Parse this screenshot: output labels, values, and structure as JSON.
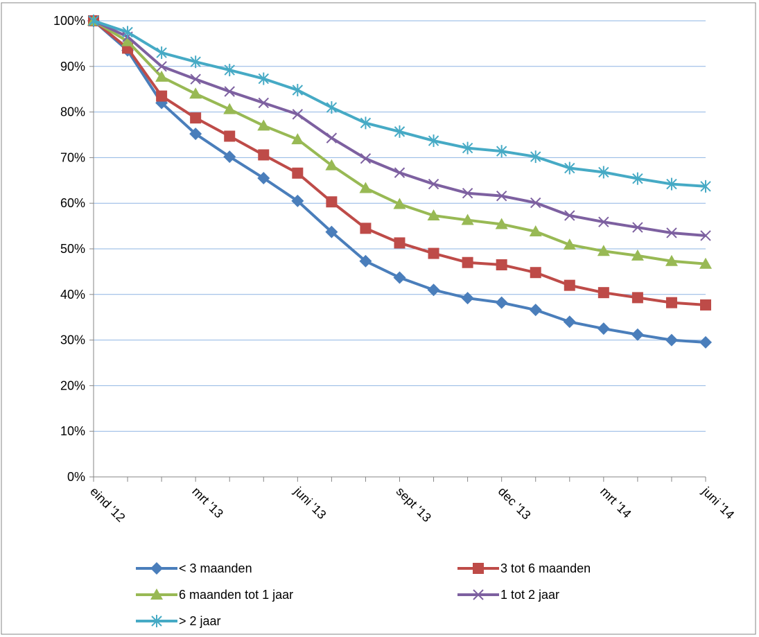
{
  "caption": "",
  "chart_data": {
    "type": "line",
    "title": "",
    "xlabel": "",
    "ylabel": "",
    "ylim": [
      0,
      1
    ],
    "y_tick_labels": [
      "0%",
      "10%",
      "20%",
      "30%",
      "40%",
      "50%",
      "60%",
      "70%",
      "80%",
      "90%",
      "100%"
    ],
    "x_tick_labels": [
      "eind '12",
      "mrt '13",
      "juni '13",
      "sept '13",
      "dec '13",
      "mrt '14",
      "juni '14"
    ],
    "x_labeled_indices": [
      0,
      3,
      6,
      9,
      12,
      15,
      18
    ],
    "x_count": 19,
    "grid": true,
    "legend_position": "bottom",
    "series": [
      {
        "name": "< 3 maanden",
        "color": "#4A7EBB",
        "marker": "diamond",
        "values": [
          1.0,
          0.935,
          0.82,
          0.752,
          0.702,
          0.655,
          0.605,
          0.537,
          0.473,
          0.437,
          0.41,
          0.392,
          0.382,
          0.366,
          0.34,
          0.325,
          0.312,
          0.3,
          0.295
        ]
      },
      {
        "name": "3 tot 6 maanden",
        "color": "#BE4B48",
        "marker": "square",
        "values": [
          1.0,
          0.94,
          0.835,
          0.787,
          0.747,
          0.706,
          0.666,
          0.603,
          0.545,
          0.513,
          0.49,
          0.47,
          0.465,
          0.448,
          0.42,
          0.404,
          0.393,
          0.382,
          0.377
        ]
      },
      {
        "name": "6 maanden tot 1 jaar",
        "color": "#98B954",
        "marker": "triangle",
        "values": [
          1.0,
          0.955,
          0.877,
          0.84,
          0.806,
          0.77,
          0.74,
          0.683,
          0.633,
          0.598,
          0.573,
          0.563,
          0.554,
          0.538,
          0.509,
          0.495,
          0.485,
          0.473,
          0.467
        ]
      },
      {
        "name": "1 tot 2 jaar",
        "color": "#7D60A0",
        "marker": "x",
        "values": [
          1.0,
          0.965,
          0.9,
          0.872,
          0.845,
          0.82,
          0.795,
          0.743,
          0.698,
          0.667,
          0.642,
          0.622,
          0.616,
          0.601,
          0.573,
          0.559,
          0.547,
          0.535,
          0.529
        ]
      },
      {
        "name": "> 2 jaar",
        "color": "#46AAC5",
        "marker": "asterisk",
        "values": [
          1.0,
          0.975,
          0.93,
          0.91,
          0.892,
          0.873,
          0.848,
          0.81,
          0.776,
          0.757,
          0.737,
          0.721,
          0.714,
          0.702,
          0.677,
          0.668,
          0.654,
          0.642,
          0.637
        ]
      }
    ]
  }
}
